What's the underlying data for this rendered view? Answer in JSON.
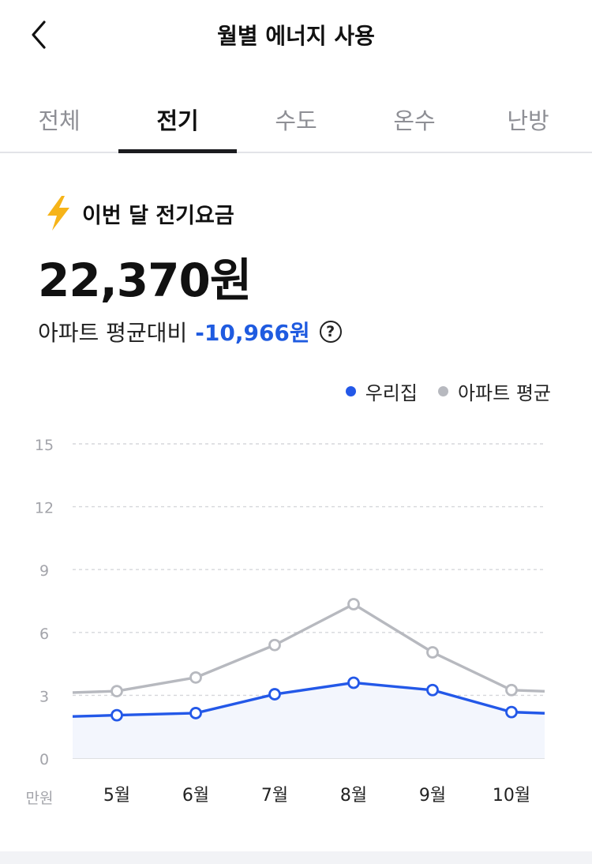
{
  "header": {
    "title": "월별 에너지 사용",
    "back_icon": "chevron-left-icon"
  },
  "tabs": [
    {
      "label": "전체",
      "active": false
    },
    {
      "label": "전기",
      "active": true
    },
    {
      "label": "수도",
      "active": false
    },
    {
      "label": "온수",
      "active": false
    },
    {
      "label": "난방",
      "active": false
    }
  ],
  "bill": {
    "icon": "lightning-bolt-icon",
    "title": "이번 달 전기요금",
    "amount": "22,370원",
    "compare_label": "아파트 평균대비",
    "compare_diff": "-10,966원",
    "help_glyph": "?"
  },
  "colors": {
    "mine": "#2358e8",
    "average": "#b7b9bf",
    "accent_text": "#1f5be0"
  },
  "chart_data": {
    "type": "line",
    "categories": [
      "5월",
      "6월",
      "7월",
      "8월",
      "9월",
      "10월"
    ],
    "series": [
      {
        "name": "우리집",
        "values": [
          2.05,
          2.15,
          3.05,
          3.6,
          3.25,
          2.2
        ]
      },
      {
        "name": "아파트 평균",
        "values": [
          3.2,
          3.85,
          5.4,
          7.35,
          5.05,
          3.25
        ]
      }
    ],
    "yunit": "만원",
    "yticks": [
      0,
      3,
      6,
      9,
      12,
      15
    ],
    "ylim": [
      0,
      15
    ],
    "grid": true,
    "legend": "top-right"
  }
}
